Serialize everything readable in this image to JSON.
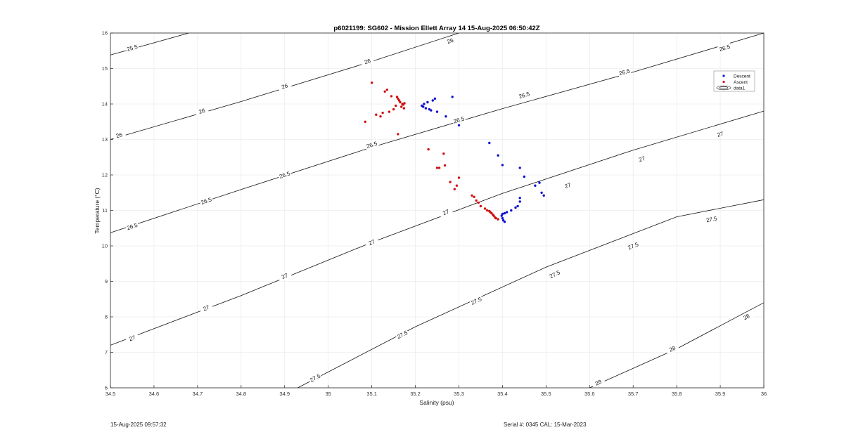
{
  "chart_data": {
    "type": "scatter",
    "title": "p6021199: SG602 - Mission Ellett Array 14 15-Aug-2025 06:50:42Z",
    "xlabel": "Salinity (psu)",
    "ylabel": "Temperature (°C)",
    "xlim": [
      34.5,
      36
    ],
    "ylim": [
      6,
      16
    ],
    "x_ticks": [
      34.5,
      34.6,
      34.7,
      34.8,
      34.9,
      35,
      35.1,
      35.2,
      35.3,
      35.4,
      35.5,
      35.6,
      35.7,
      35.8,
      35.9,
      36
    ],
    "y_ticks": [
      6,
      7,
      8,
      9,
      10,
      11,
      12,
      13,
      14,
      15,
      16
    ],
    "grid": true,
    "legend_position": "top-right",
    "legend": [
      "Descent",
      "Ascent",
      "data1"
    ],
    "colors": {
      "descent": "#1010d0",
      "ascent": "#d01010",
      "contour": "#111111",
      "grid": "#e6e6e6"
    },
    "contours": [
      {
        "label": "25.5",
        "points": [
          [
            34.5,
            15.38
          ],
          [
            34.68,
            16.0
          ]
        ],
        "label_pos": [
          [
            34.55,
            15.58
          ]
        ]
      },
      {
        "label": "26",
        "points": [
          [
            34.5,
            13.0
          ],
          [
            34.8,
            14.07
          ],
          [
            35.1,
            15.2
          ],
          [
            35.3,
            16.0
          ]
        ],
        "label_pos": [
          [
            34.52,
            13.12
          ],
          [
            34.71,
            13.8
          ],
          [
            34.9,
            14.5
          ],
          [
            35.09,
            15.2
          ],
          [
            35.28,
            15.78
          ]
        ]
      },
      {
        "label": "26.5",
        "points": [
          [
            34.5,
            10.37
          ],
          [
            34.8,
            11.59
          ],
          [
            35.1,
            12.78
          ],
          [
            35.4,
            13.87
          ],
          [
            35.7,
            14.9
          ],
          [
            36.0,
            16.0
          ]
        ],
        "label_pos": [
          [
            34.55,
            10.55
          ],
          [
            34.72,
            11.27
          ],
          [
            34.9,
            12.0
          ],
          [
            35.1,
            12.85
          ],
          [
            35.3,
            13.55
          ],
          [
            35.45,
            14.25
          ],
          [
            35.68,
            14.9
          ],
          [
            35.91,
            15.58
          ]
        ]
      },
      {
        "label": "27",
        "points": [
          [
            34.5,
            7.2
          ],
          [
            34.8,
            8.6
          ],
          [
            35.1,
            10.1
          ],
          [
            35.4,
            11.48
          ],
          [
            35.7,
            12.7
          ],
          [
            36.0,
            13.8
          ]
        ],
        "label_pos": [
          [
            34.55,
            7.4
          ],
          [
            34.72,
            8.25
          ],
          [
            34.9,
            9.15
          ],
          [
            35.1,
            10.1
          ],
          [
            35.27,
            10.95
          ],
          [
            35.55,
            11.7
          ],
          [
            35.72,
            12.45
          ],
          [
            35.9,
            13.15
          ]
        ]
      },
      {
        "label": "27.5",
        "points": [
          [
            34.93,
            6.0
          ],
          [
            35.2,
            7.72
          ],
          [
            35.5,
            9.4
          ],
          [
            35.8,
            10.82
          ],
          [
            36.0,
            11.3
          ]
        ],
        "label_pos": [
          [
            34.97,
            6.28
          ],
          [
            35.17,
            7.5
          ],
          [
            35.34,
            8.45
          ],
          [
            35.52,
            9.2
          ],
          [
            35.7,
            10.0
          ],
          [
            35.88,
            10.75
          ]
        ]
      },
      {
        "label": "28",
        "points": [
          [
            35.6,
            6.0
          ],
          [
            35.8,
            7.1
          ],
          [
            36.0,
            8.4
          ]
        ],
        "label_pos": [
          [
            35.62,
            6.15
          ],
          [
            35.79,
            7.1
          ],
          [
            35.96,
            8.0
          ]
        ]
      }
    ],
    "series": [
      {
        "name": "Descent",
        "marker": "dot",
        "x": [
          35.215,
          35.218,
          35.22,
          35.224,
          35.228,
          35.232,
          35.236,
          35.24,
          35.245,
          35.25,
          35.27,
          35.285,
          35.3,
          35.37,
          35.39,
          35.4,
          35.44,
          35.45,
          35.475,
          35.485,
          35.49,
          35.495,
          35.44,
          35.44,
          35.435,
          35.43,
          35.42,
          35.41,
          35.405,
          35.4,
          35.398,
          35.4,
          35.402,
          35.405
        ],
        "y": [
          13.95,
          13.92,
          14.0,
          13.88,
          14.05,
          13.85,
          13.82,
          14.1,
          14.15,
          13.78,
          13.65,
          14.2,
          13.4,
          12.9,
          12.55,
          12.28,
          12.2,
          11.95,
          11.7,
          11.78,
          11.5,
          11.42,
          11.35,
          11.25,
          11.12,
          11.08,
          11.0,
          10.95,
          10.92,
          10.9,
          10.85,
          10.78,
          10.72,
          10.68
        ]
      },
      {
        "name": "Ascent",
        "marker": "dot",
        "x": [
          35.085,
          35.1,
          35.11,
          35.12,
          35.125,
          35.13,
          35.135,
          35.14,
          35.145,
          35.15,
          35.155,
          35.158,
          35.16,
          35.163,
          35.165,
          35.168,
          35.17,
          35.172,
          35.174,
          35.175,
          35.16,
          35.23,
          35.25,
          35.255,
          35.265,
          35.268,
          35.28,
          35.29,
          35.295,
          35.3,
          35.33,
          35.335,
          35.34,
          35.345,
          35.35,
          35.36,
          35.365,
          35.37,
          35.372,
          35.375,
          35.378,
          35.38,
          35.383,
          35.385,
          35.39
        ],
        "y": [
          13.5,
          14.6,
          13.7,
          13.65,
          13.75,
          14.35,
          14.4,
          13.78,
          14.22,
          13.85,
          13.95,
          14.2,
          14.15,
          14.1,
          14.05,
          13.92,
          14.0,
          13.98,
          13.88,
          14.02,
          13.15,
          12.72,
          12.2,
          12.2,
          12.6,
          12.27,
          11.8,
          11.6,
          11.7,
          11.92,
          11.42,
          11.38,
          11.28,
          11.22,
          11.12,
          11.05,
          11.0,
          10.98,
          10.95,
          10.92,
          10.88,
          10.85,
          10.8,
          10.78,
          10.75
        ]
      }
    ]
  },
  "footer": {
    "timestamp": "15-Aug-2025 09:57:32",
    "serial": "Serial #: 0345  CAL: 15-Mar-2023"
  }
}
